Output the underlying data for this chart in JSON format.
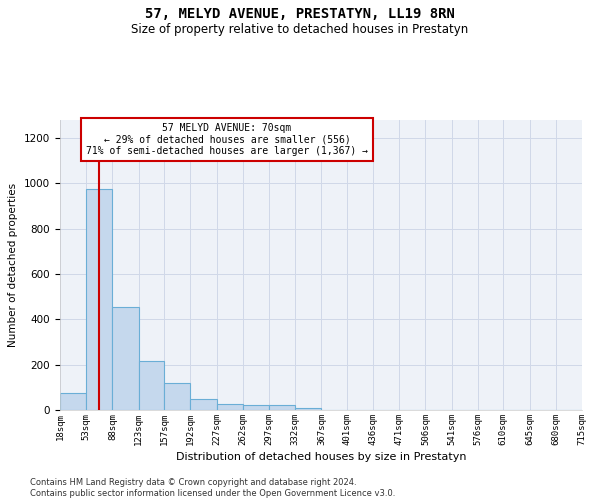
{
  "title": "57, MELYD AVENUE, PRESTATYN, LL19 8RN",
  "subtitle": "Size of property relative to detached houses in Prestatyn",
  "xlabel": "Distribution of detached houses by size in Prestatyn",
  "ylabel": "Number of detached properties",
  "footer": "Contains HM Land Registry data © Crown copyright and database right 2024.\nContains public sector information licensed under the Open Government Licence v3.0.",
  "annotation_title": "57 MELYD AVENUE: 70sqm",
  "annotation_line1": "← 29% of detached houses are smaller (556)",
  "annotation_line2": "71% of semi-detached houses are larger (1,367) →",
  "property_size": 70,
  "bar_color": "#c5d8ed",
  "bar_edge_color": "#6aaed6",
  "vline_color": "#cc0000",
  "annotation_box_color": "#cc0000",
  "bins": [
    18,
    53,
    88,
    123,
    157,
    192,
    227,
    262,
    297,
    332,
    367,
    401,
    436,
    471,
    506,
    541,
    576,
    610,
    645,
    680,
    715
  ],
  "bin_labels": [
    "18sqm",
    "53sqm",
    "88sqm",
    "123sqm",
    "157sqm",
    "192sqm",
    "227sqm",
    "262sqm",
    "297sqm",
    "332sqm",
    "367sqm",
    "401sqm",
    "436sqm",
    "471sqm",
    "506sqm",
    "541sqm",
    "576sqm",
    "610sqm",
    "645sqm",
    "680sqm",
    "715sqm"
  ],
  "values": [
    75,
    975,
    455,
    215,
    120,
    50,
    25,
    20,
    20,
    10,
    0,
    0,
    0,
    0,
    0,
    0,
    0,
    0,
    0,
    0
  ],
  "ylim": [
    0,
    1280
  ],
  "yticks": [
    0,
    200,
    400,
    600,
    800,
    1000,
    1200
  ],
  "grid_color": "#d0d8e8",
  "background_color": "#eef2f8"
}
